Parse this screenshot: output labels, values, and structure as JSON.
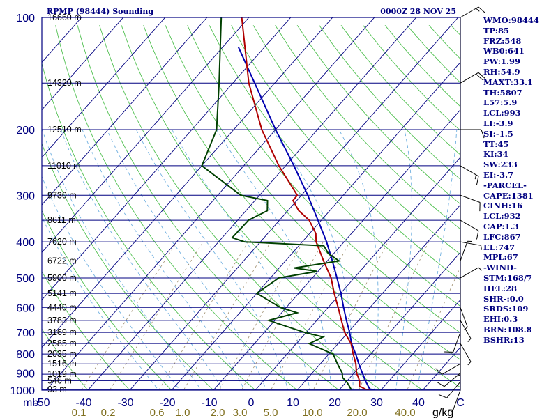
{
  "header": {
    "station_title": "RPMP (98444) Sounding",
    "timestamp": "0000Z 28 NOV 25"
  },
  "colors": {
    "axis_blue": "#000080",
    "dry_adiabat": "#50c050",
    "moist_adiabat": "#70b0e0",
    "mixing_ratio": "#a09070",
    "isotherm": "#000080",
    "temperature": "#b00000",
    "dewpoint": "#004000",
    "parcel": "#0000b0",
    "mixing_label": "#807020"
  },
  "indices": [
    "WMO:98444",
    "TP:85",
    "FRZ:548",
    "WB0:641",
    "PW:1.99",
    "RH:54.9",
    "MAXT:33.1",
    "TH:5807",
    "L57:5.9",
    "LCL:993",
    "LI:-3.9",
    "SI:-1.5",
    "TT:45",
    "KI:34",
    "SW:233",
    "EI:-3.7",
    "-PARCEL-",
    "CAPE:1381",
    "CINH:16",
    "LCL:932",
    "CAP:1.3",
    "LFC:867",
    "EL:747",
    "MPL:67",
    "-WIND-",
    "STM:168/7",
    "HEL:28",
    "SHR-:0.0",
    "SRDS:109",
    "EHI:0.3",
    "BRN:108.8",
    "BSHR:13"
  ],
  "chart_data": {
    "type": "skew-t log-p sounding",
    "title": "RPMP (98444) Sounding",
    "subtitle": "0000Z 28 NOV 25",
    "pressure_axis_unit": "mb",
    "pressure_levels": [
      1000,
      900,
      800,
      700,
      600,
      500,
      400,
      300,
      200,
      100
    ],
    "height_labels": [
      {
        "p": 995,
        "label": "93 m"
      },
      {
        "p": 943,
        "label": "546 m"
      },
      {
        "p": 906,
        "label": "1019 m"
      },
      {
        "p": 850,
        "label": "1516 m"
      },
      {
        "p": 800,
        "label": "2035 m"
      },
      {
        "p": 750,
        "label": "2585 m"
      },
      {
        "p": 700,
        "label": "3169 m"
      },
      {
        "p": 650,
        "label": "3783 m"
      },
      {
        "p": 600,
        "label": "4440 m"
      },
      {
        "p": 550,
        "label": "5141 m"
      },
      {
        "p": 500,
        "label": "5900 m"
      },
      {
        "p": 450,
        "label": "6722 m"
      },
      {
        "p": 400,
        "label": "7620 m"
      },
      {
        "p": 350,
        "label": "8611 m"
      },
      {
        "p": 300,
        "label": "9730 m"
      },
      {
        "p": 250,
        "label": "11010 m"
      },
      {
        "p": 200,
        "label": "12510 m"
      },
      {
        "p": 150,
        "label": "14320 m"
      },
      {
        "p": 100,
        "label": "16660 m"
      }
    ],
    "temperature_ticks": [
      "-50",
      "-40",
      "-30",
      "-20",
      "-10",
      "0",
      "10",
      "20",
      "30",
      "40",
      "C"
    ],
    "mixing_ratio_ticks": [
      {
        "value": 0.1,
        "label": "0.1"
      },
      {
        "value": 0.2,
        "label": "0.2"
      },
      {
        "value": 0.6,
        "label": "0.6"
      },
      {
        "value": 1.0,
        "label": "1.0"
      },
      {
        "value": 2.0,
        "label": "2.0"
      },
      {
        "value": 3.0,
        "label": "3.0"
      },
      {
        "value": 5.0,
        "label": "5.0"
      },
      {
        "value": 10.0,
        "label": "10.0"
      },
      {
        "value": 20.0,
        "label": "20.0"
      },
      {
        "value": 40.0,
        "label": "40.0"
      }
    ],
    "mixing_ratio_unit": "g/kg",
    "temperature_unit": "C",
    "temperature": [
      {
        "p": 1000,
        "t": 27.3
      },
      {
        "p": 995,
        "t": 26.2
      },
      {
        "p": 975,
        "t": 24.0
      },
      {
        "p": 950,
        "t": 23.2
      },
      {
        "p": 925,
        "t": 22.0
      },
      {
        "p": 900,
        "t": 20.6
      },
      {
        "p": 850,
        "t": 18.5
      },
      {
        "p": 800,
        "t": 15.8
      },
      {
        "p": 750,
        "t": 13.1
      },
      {
        "p": 700,
        "t": 9.2
      },
      {
        "p": 650,
        "t": 5.9
      },
      {
        "p": 600,
        "t": 2.4
      },
      {
        "p": 550,
        "t": -1.5
      },
      {
        "p": 500,
        "t": -5.5
      },
      {
        "p": 450,
        "t": -10.9
      },
      {
        "p": 400,
        "t": -16.7
      },
      {
        "p": 380,
        "t": -18.5
      },
      {
        "p": 350,
        "t": -22.9
      },
      {
        "p": 330,
        "t": -27.4
      },
      {
        "p": 310,
        "t": -30.9
      },
      {
        "p": 300,
        "t": -31.0
      },
      {
        "p": 250,
        "t": -41.6
      },
      {
        "p": 200,
        "t": -53.3
      },
      {
        "p": 150,
        "t": -66.2
      },
      {
        "p": 100,
        "t": -81.7
      }
    ],
    "dewpoint": [
      {
        "p": 1000,
        "td": 23.0
      },
      {
        "p": 975,
        "td": 21.6
      },
      {
        "p": 950,
        "td": 20.1
      },
      {
        "p": 925,
        "td": 18.2
      },
      {
        "p": 900,
        "td": 17.2
      },
      {
        "p": 850,
        "td": 14.1
      },
      {
        "p": 800,
        "td": 11.0
      },
      {
        "p": 750,
        "td": 3.1
      },
      {
        "p": 720,
        "td": 5.0
      },
      {
        "p": 700,
        "td": -0.4
      },
      {
        "p": 650,
        "td": -11.5
      },
      {
        "p": 620,
        "td": -6.3
      },
      {
        "p": 600,
        "td": -11.4
      },
      {
        "p": 550,
        "td": -20.0
      },
      {
        "p": 500,
        "td": -18.0
      },
      {
        "p": 480,
        "td": -10.2
      },
      {
        "p": 470,
        "td": -16.4
      },
      {
        "p": 450,
        "td": -7.2
      },
      {
        "p": 430,
        "td": -11.3
      },
      {
        "p": 410,
        "td": -14.0
      },
      {
        "p": 400,
        "td": -33.8
      },
      {
        "p": 390,
        "td": -37.6
      },
      {
        "p": 350,
        "td": -37.4
      },
      {
        "p": 330,
        "td": -34.9
      },
      {
        "p": 310,
        "td": -37.0
      },
      {
        "p": 300,
        "td": -44.5
      },
      {
        "p": 250,
        "td": -60.0
      },
      {
        "p": 200,
        "td": -64.1
      },
      {
        "p": 150,
        "td": -73.3
      },
      {
        "p": 100,
        "td": -86.6
      }
    ],
    "parcel_path": [
      {
        "p": 1000,
        "t": 28.6
      },
      {
        "p": 993,
        "t": 27.1
      },
      {
        "p": 950,
        "t": 24.7
      },
      {
        "p": 900,
        "t": 22.0
      },
      {
        "p": 850,
        "t": 19.2
      },
      {
        "p": 800,
        "t": 16.4
      },
      {
        "p": 750,
        "t": 13.2
      },
      {
        "p": 700,
        "t": 10.4
      },
      {
        "p": 650,
        "t": 7.1
      },
      {
        "p": 600,
        "t": 3.7
      },
      {
        "p": 550,
        "t": 0.1
      },
      {
        "p": 500,
        "t": -4.1
      },
      {
        "p": 450,
        "t": -8.8
      },
      {
        "p": 400,
        "t": -14.2
      },
      {
        "p": 350,
        "t": -20.8
      },
      {
        "p": 300,
        "t": -28.5
      },
      {
        "p": 250,
        "t": -38.0
      },
      {
        "p": 200,
        "t": -50.0
      },
      {
        "p": 150,
        "t": -64.8
      },
      {
        "p": 120,
        "t": -76.3
      }
    ],
    "wind_barbs": [
      {
        "p": 1000,
        "dir": 200,
        "spd": 5
      },
      {
        "p": 950,
        "dir": 220,
        "spd": 10
      },
      {
        "p": 900,
        "dir": 230,
        "spd": 10
      },
      {
        "p": 850,
        "dir": 240,
        "spd": 10
      },
      {
        "p": 800,
        "dir": 180,
        "spd": 5
      },
      {
        "p": 750,
        "dir": 150,
        "spd": 5
      },
      {
        "p": 700,
        "dir": 200,
        "spd": 10
      },
      {
        "p": 650,
        "dir": 150,
        "spd": 5
      },
      {
        "p": 600,
        "dir": 160,
        "spd": 5
      },
      {
        "p": 500,
        "dir": 60,
        "spd": 5
      },
      {
        "p": 450,
        "dir": 20,
        "spd": 5
      },
      {
        "p": 400,
        "dir": 100,
        "spd": 5
      },
      {
        "p": 350,
        "dir": 120,
        "spd": 10
      },
      {
        "p": 300,
        "dir": 110,
        "spd": 10
      },
      {
        "p": 250,
        "dir": 120,
        "spd": 15
      },
      {
        "p": 200,
        "dir": 90,
        "spd": 10
      },
      {
        "p": 150,
        "dir": 60,
        "spd": 20
      },
      {
        "p": 100,
        "dir": 60,
        "spd": 15
      }
    ]
  }
}
